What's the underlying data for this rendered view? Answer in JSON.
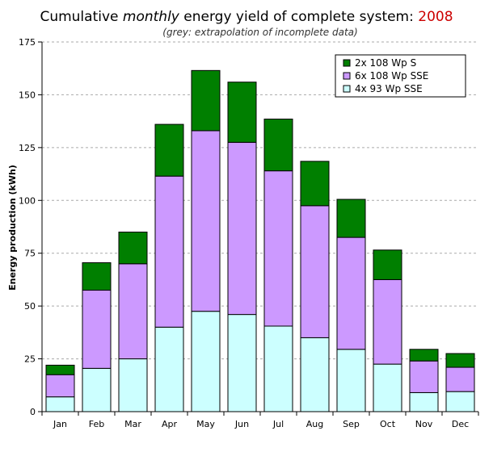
{
  "chart_data": {
    "type": "bar",
    "stacked": true,
    "title_prefix": "Cumulative ",
    "title_italic": "monthly",
    "title_suffix": " energy yield of complete system: ",
    "title_year": "2008",
    "subtitle": "(grey: extrapolation of incomplete data)",
    "xlabel": "",
    "ylabel": "Energy production (kWh)",
    "ylim": [
      0,
      175
    ],
    "yticks": [
      0,
      25,
      50,
      75,
      100,
      125,
      150,
      175
    ],
    "grid": true,
    "legend_position": "top-right",
    "categories": [
      "Jan",
      "Feb",
      "Mar",
      "Apr",
      "May",
      "Jun",
      "Jul",
      "Aug",
      "Sep",
      "Oct",
      "Nov",
      "Dec"
    ],
    "series": [
      {
        "name": "4x 93 Wp SSE",
        "color": "#ccffff",
        "values": [
          7,
          20.5,
          25,
          40,
          47.5,
          46,
          40.5,
          35,
          29.5,
          22.5,
          9,
          9.5
        ]
      },
      {
        "name": "6x 108 Wp SSE",
        "color": "#cc99ff",
        "values": [
          10.5,
          37,
          45,
          71.5,
          85.5,
          81.5,
          73.5,
          62.5,
          53,
          40,
          15,
          11.5
        ]
      },
      {
        "name": "2x 108 Wp S",
        "color": "#007f00",
        "values": [
          4.5,
          13,
          15,
          24.5,
          28.5,
          28.5,
          24.5,
          21,
          18,
          14,
          5.5,
          6.5
        ]
      }
    ],
    "legend_order": [
      2,
      1,
      0
    ],
    "colors": {
      "title_year": "#cc0000",
      "grid": "#aaaaaa",
      "bar_outline": "#000000"
    }
  }
}
